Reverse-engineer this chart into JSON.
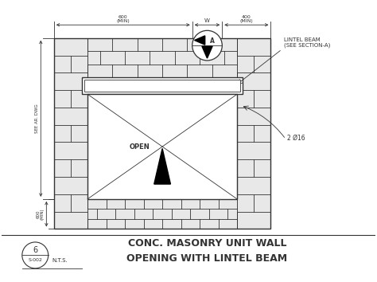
{
  "line_color": "#333333",
  "wall_bg": "#e8e8e8",
  "white": "#ffffff",
  "title_line1": "CONC. MASONRY UNIT WALL",
  "title_line2": "OPENING WITH LINTEL BEAM",
  "title_fontsize": 9,
  "detail_num": "6",
  "sheet_num": "S-002",
  "scale": "N.T.S.",
  "label_lintel": "LINTEL BEAM\n(SEE SECTION-A)",
  "label_reinf": "2 Ø16",
  "label_open": "OPEN",
  "label_w": "W",
  "label_600_top": "600\n(MIN)",
  "label_400_top": "400\n(MIN)",
  "label_600_bot": "600\n(MIN)",
  "label_side": "SEE AR. DWG",
  "section_label": "A",
  "fig_width": 4.74,
  "fig_height": 3.54,
  "dpi": 100,
  "xlim": [
    0,
    100
  ],
  "ylim": [
    0,
    75
  ]
}
